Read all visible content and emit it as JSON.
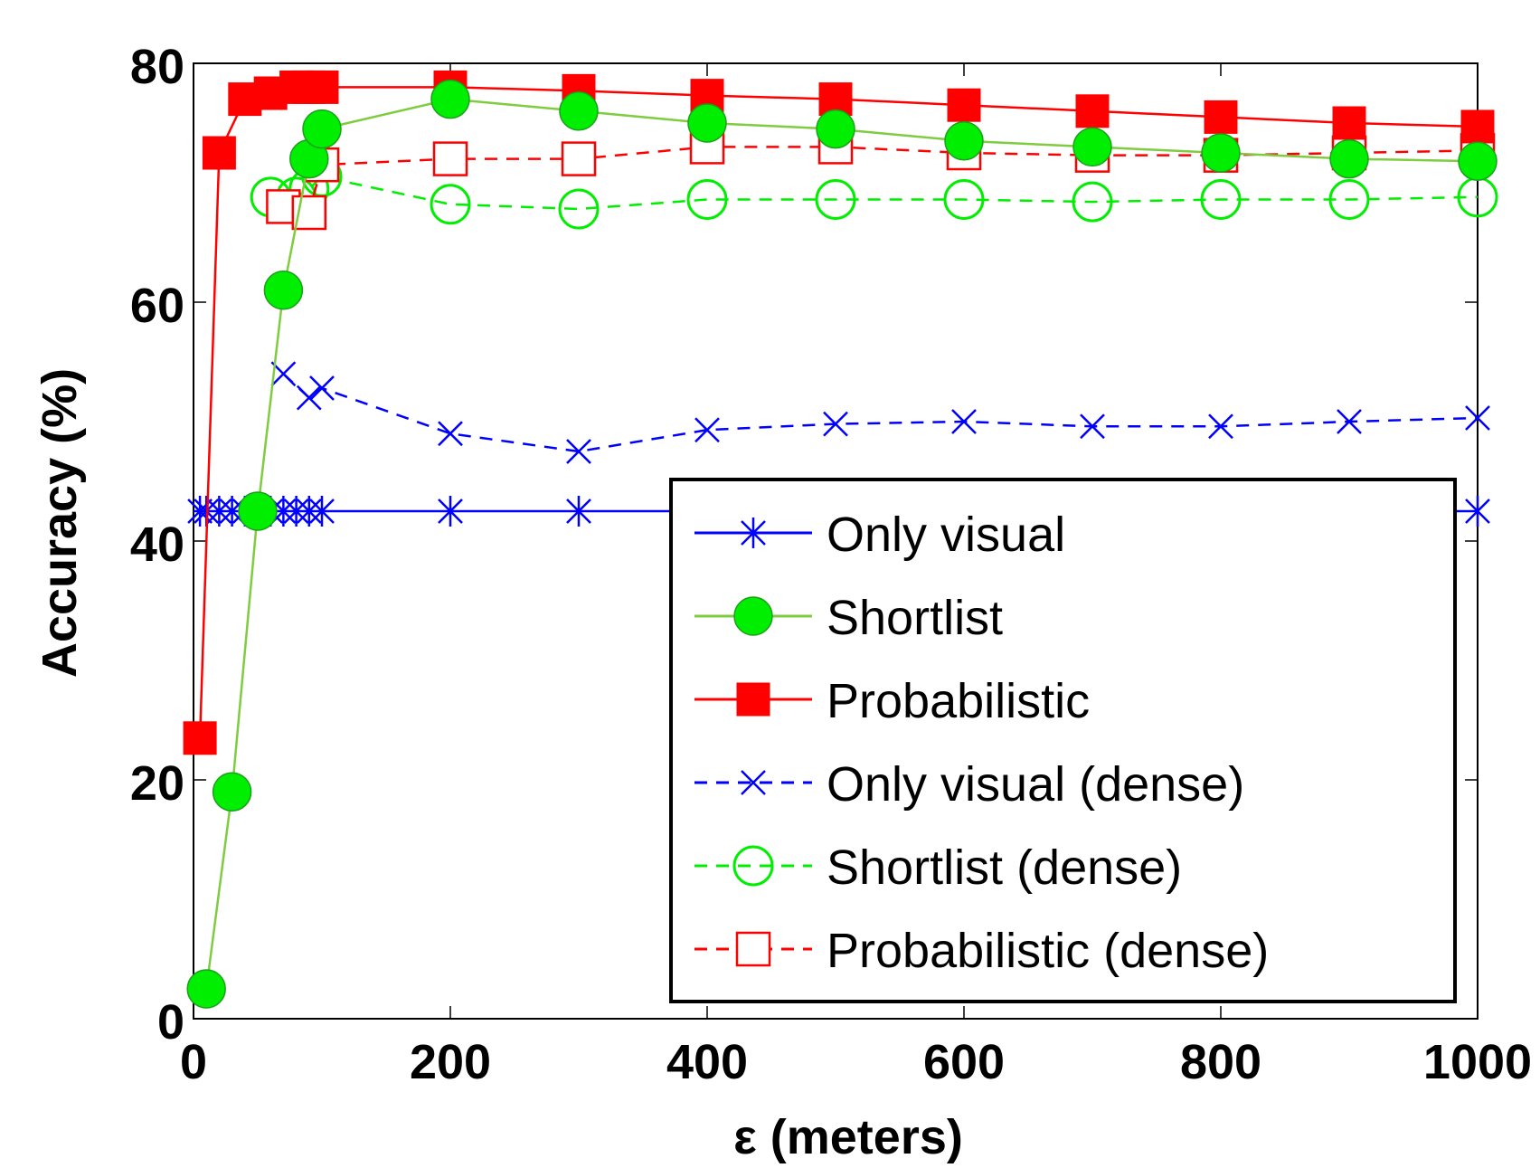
{
  "chart_data": {
    "type": "line",
    "title": "",
    "xlabel": "ε (meters)",
    "ylabel": "Accuracy (%)",
    "xlim": [
      0,
      1000
    ],
    "ylim": [
      0,
      80
    ],
    "xticks": [
      0,
      200,
      400,
      600,
      800,
      1000
    ],
    "yticks": [
      0,
      20,
      40,
      60,
      80
    ],
    "grid": false,
    "legend_position": "bottom-right",
    "series": [
      {
        "name": "Only visual",
        "color": "#0000ff",
        "linestyle": "solid",
        "marker": "asterisk",
        "x": [
          5,
          10,
          20,
          30,
          40,
          50,
          60,
          70,
          80,
          90,
          100,
          200,
          300,
          400,
          500,
          600,
          700,
          800,
          900,
          1000
        ],
        "y": [
          42.5,
          42.5,
          42.5,
          42.5,
          42.5,
          42.5,
          42.5,
          42.5,
          42.5,
          42.5,
          42.5,
          42.5,
          42.5,
          42.5,
          42.5,
          42.5,
          42.5,
          42.5,
          42.5,
          42.5
        ]
      },
      {
        "name": "Shortlist",
        "color": "#00ee00",
        "line_color": "#7fcc40",
        "linestyle": "solid",
        "marker": "filled-circle",
        "x": [
          10,
          30,
          50,
          70,
          90,
          100,
          200,
          300,
          400,
          500,
          600,
          700,
          800,
          900,
          1000
        ],
        "y": [
          2.5,
          19,
          42.5,
          61,
          72,
          74.5,
          77,
          76,
          75,
          74.5,
          73.5,
          73,
          72.5,
          72,
          71.8
        ]
      },
      {
        "name": "Probabilistic",
        "color": "#ff0000",
        "linestyle": "solid",
        "marker": "filled-square",
        "x": [
          5,
          20,
          40,
          60,
          80,
          90,
          100,
          200,
          300,
          400,
          500,
          600,
          700,
          800,
          900,
          1000
        ],
        "y": [
          23.5,
          72.5,
          77,
          77.5,
          78,
          78,
          78,
          78,
          77.7,
          77.3,
          77,
          76.5,
          76,
          75.5,
          75,
          74.7
        ]
      },
      {
        "name": "Only visual (dense)",
        "color": "#0000ff",
        "linestyle": "dashed",
        "marker": "x",
        "x": [
          70,
          90,
          100,
          200,
          300,
          400,
          500,
          600,
          700,
          800,
          900,
          1000
        ],
        "y": [
          54,
          52,
          52.8,
          49,
          47.5,
          49.3,
          49.8,
          50,
          49.6,
          49.6,
          50,
          50.3
        ]
      },
      {
        "name": "Shortlist (dense)",
        "color": "#00ee00",
        "linestyle": "dashed",
        "marker": "open-circle",
        "x": [
          60,
          80,
          90,
          100,
          200,
          300,
          400,
          500,
          600,
          700,
          800,
          900,
          1000
        ],
        "y": [
          68.8,
          68.8,
          69.5,
          70.5,
          68.2,
          67.8,
          68.6,
          68.6,
          68.6,
          68.4,
          68.6,
          68.6,
          68.8
        ]
      },
      {
        "name": "Probabilistic (dense)",
        "color": "#ff0000",
        "linestyle": "dashed",
        "marker": "open-square",
        "x": [
          70,
          90,
          100,
          200,
          300,
          400,
          500,
          600,
          700,
          800,
          900,
          1000
        ],
        "y": [
          68,
          67.5,
          71.5,
          72,
          72,
          73,
          73,
          72.5,
          72.3,
          72.3,
          72.5,
          72.7
        ]
      }
    ]
  }
}
